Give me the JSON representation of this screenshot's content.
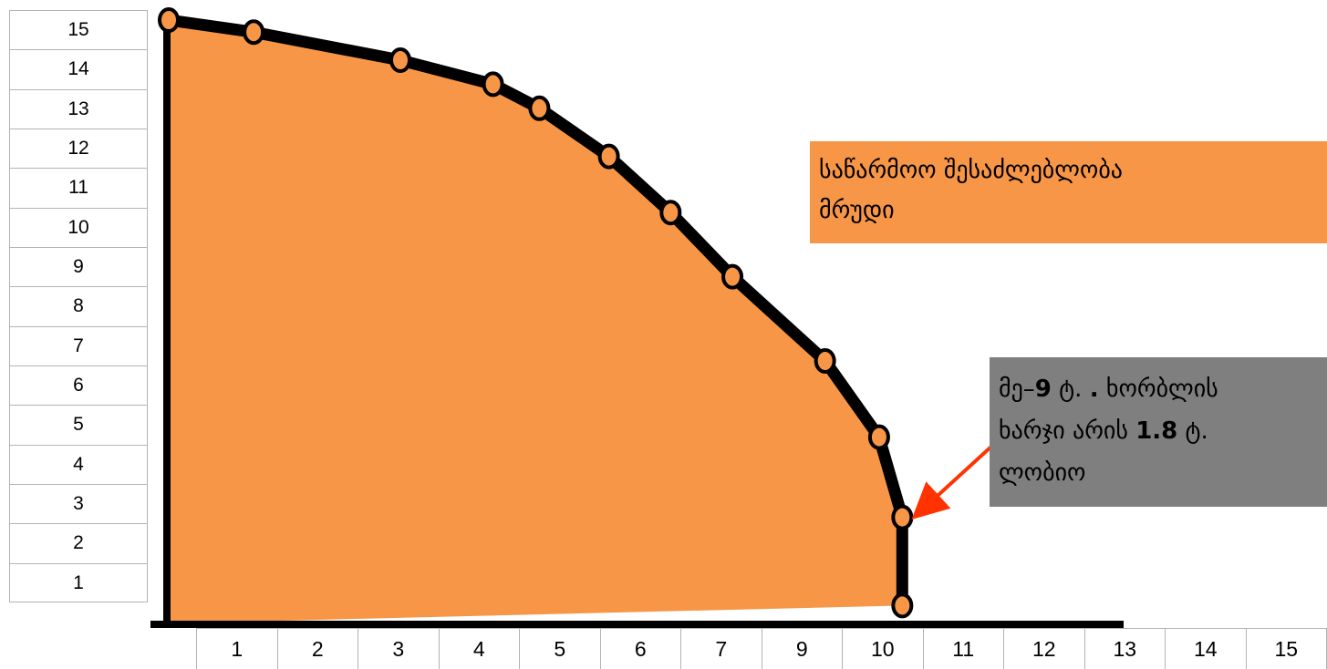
{
  "chart_data": {
    "type": "area",
    "title": "",
    "xlabel": "",
    "ylabel": "",
    "x_tick_labels": [
      "1",
      "2",
      "3",
      "4",
      "5",
      "6",
      "7",
      "9",
      "10",
      "11",
      "12",
      "13",
      "14",
      "15"
    ],
    "y_tick_labels": [
      "15",
      "14",
      "13",
      "12",
      "11",
      "10",
      "9",
      "8",
      "7",
      "6",
      "5",
      "4",
      "3",
      "2",
      "1"
    ],
    "xlim": [
      0,
      15
    ],
    "ylim": [
      0,
      15
    ],
    "grid": false,
    "fill_color": "#f79646",
    "curve_color": "#000000",
    "marker_color": "#f79646",
    "points": [
      {
        "x": 0,
        "y": 15.0
      },
      {
        "x": 1.1,
        "y": 14.7
      },
      {
        "x": 3.0,
        "y": 14.0
      },
      {
        "x": 4.2,
        "y": 13.4
      },
      {
        "x": 4.8,
        "y": 12.8
      },
      {
        "x": 5.7,
        "y": 11.6
      },
      {
        "x": 6.5,
        "y": 10.2
      },
      {
        "x": 7.3,
        "y": 8.6
      },
      {
        "x": 8.5,
        "y": 6.5
      },
      {
        "x": 9.2,
        "y": 4.6
      },
      {
        "x": 9.5,
        "y": 2.6
      },
      {
        "x": 9.5,
        "y": 0.4
      }
    ],
    "annotations": [
      {
        "id": "ppc",
        "lines": [
          "საწარმოო შესაძლებლობა",
          "მრუდი"
        ],
        "background": "#f79646"
      },
      {
        "id": "cost",
        "lines": [
          [
            {
              "text": "მე–",
              "bold": false
            },
            {
              "text": "9",
              "bold": true
            },
            {
              "text": " ტ. ",
              "bold": false
            },
            {
              "text": ".",
              "bold": true
            },
            {
              "text": " ხორბლის",
              "bold": false
            }
          ],
          [
            {
              "text": "ხარჯი არის ",
              "bold": false
            },
            {
              "text": "1.8",
              "bold": true
            },
            {
              "text": " ტ.",
              "bold": false
            }
          ],
          [
            {
              "text": "ლობიო",
              "bold": false
            }
          ]
        ],
        "background": "#7f7f7f",
        "arrow_color": "#ff3300",
        "arrow_target_point": 10
      }
    ]
  }
}
